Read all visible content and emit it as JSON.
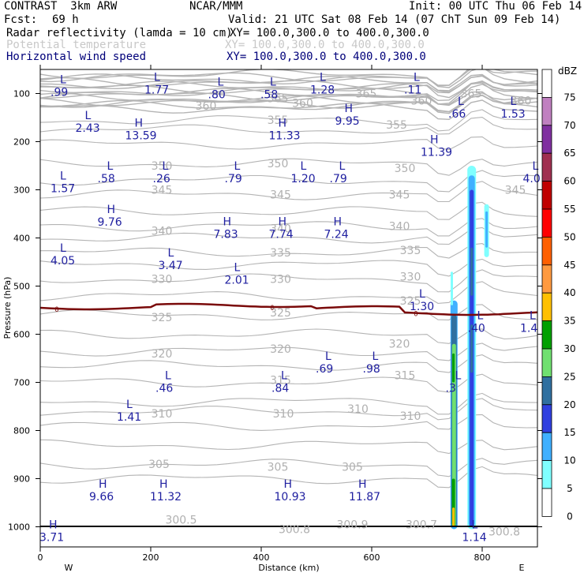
{
  "header": {
    "model": "CONTRAST  3km ARW",
    "org": "NCAR/MMM",
    "init": "Init: 00 UTC Thu 06 Feb 14",
    "fcst_label": "Fcst:",
    "fcst_value": "69 h",
    "valid": "Valid: 21 UTC Sat 08 Feb 14 (07 ChT Sun 09 Feb 14)",
    "fields": [
      {
        "name": "Radar reflectivity (lamda = 10 cm)",
        "xy": "XY= 100.0,300.0 to 400.0,300.0",
        "color": "#000000"
      },
      {
        "name": "Potential temperature",
        "xy": "XY= 100.0,300.0 to 400.0,300.0",
        "color": "#c8c8c8"
      },
      {
        "name": "Horizontal wind speed",
        "xy": "XY= 100.0,300.0 to 400.0,300.0",
        "color": "#00007a"
      }
    ]
  },
  "chart_data": {
    "type": "cross-section",
    "xlabel": "Distance (km)",
    "ylabel": "Pressure (hPa)",
    "xlim": [
      0,
      900
    ],
    "ylim": [
      1050,
      40
    ],
    "x_ticks": [
      "0",
      "200",
      "400",
      "600",
      "800"
    ],
    "y_ticks": [
      "100",
      "200",
      "300",
      "400",
      "500",
      "600",
      "700",
      "800",
      "900",
      "1000"
    ],
    "x_ends": {
      "left": "W",
      "right": "E"
    },
    "colorbar": {
      "unit": "dBZ",
      "levels": [
        "75",
        "70",
        "65",
        "60",
        "55",
        "50",
        "45",
        "40",
        "35",
        "30",
        "25",
        "20",
        "15",
        "10",
        "5",
        "0"
      ],
      "colors": [
        "#ffffff",
        "#c080c0",
        "#8030a0",
        "#a03050",
        "#c00000",
        "#ff0000",
        "#ff6000",
        "#ff9a40",
        "#ffc000",
        "#00a000",
        "#70e070",
        "#3070a0",
        "#3040e0",
        "#40b0ff",
        "#80ffff",
        "#ffffff"
      ]
    },
    "theta_labels": [
      {
        "x": 300,
        "p": 125,
        "t": "360"
      },
      {
        "x": 475,
        "p": 120,
        "t": "360"
      },
      {
        "x": 690,
        "p": 115,
        "t": "360"
      },
      {
        "x": 870,
        "p": 115,
        "t": "360"
      },
      {
        "x": 430,
        "p": 110,
        "t": "365"
      },
      {
        "x": 590,
        "p": 100,
        "t": "365"
      },
      {
        "x": 780,
        "p": 100,
        "t": "365"
      },
      {
        "x": 430,
        "p": 155,
        "t": "355"
      },
      {
        "x": 645,
        "p": 165,
        "t": "355"
      },
      {
        "x": 220,
        "p": 250,
        "t": "350"
      },
      {
        "x": 430,
        "p": 245,
        "t": "350"
      },
      {
        "x": 660,
        "p": 255,
        "t": "350"
      },
      {
        "x": 220,
        "p": 300,
        "t": "345"
      },
      {
        "x": 435,
        "p": 310,
        "t": "345"
      },
      {
        "x": 650,
        "p": 310,
        "t": "345"
      },
      {
        "x": 860,
        "p": 300,
        "t": "345"
      },
      {
        "x": 220,
        "p": 385,
        "t": "340"
      },
      {
        "x": 435,
        "p": 380,
        "t": "340"
      },
      {
        "x": 650,
        "p": 375,
        "t": "340"
      },
      {
        "x": 435,
        "p": 430,
        "t": "335"
      },
      {
        "x": 670,
        "p": 425,
        "t": "335"
      },
      {
        "x": 220,
        "p": 485,
        "t": "330"
      },
      {
        "x": 435,
        "p": 485,
        "t": "330"
      },
      {
        "x": 670,
        "p": 480,
        "t": "330"
      },
      {
        "x": 670,
        "p": 530,
        "t": "325"
      },
      {
        "x": 220,
        "p": 565,
        "t": "325"
      },
      {
        "x": 435,
        "p": 555,
        "t": "325"
      },
      {
        "x": 220,
        "p": 640,
        "t": "320"
      },
      {
        "x": 435,
        "p": 630,
        "t": "320"
      },
      {
        "x": 650,
        "p": 620,
        "t": "320"
      },
      {
        "x": 435,
        "p": 695,
        "t": "315"
      },
      {
        "x": 660,
        "p": 685,
        "t": "315"
      },
      {
        "x": 220,
        "p": 765,
        "t": "310"
      },
      {
        "x": 440,
        "p": 765,
        "t": "310"
      },
      {
        "x": 575,
        "p": 755,
        "t": "310"
      },
      {
        "x": 670,
        "p": 770,
        "t": "310"
      },
      {
        "x": 215,
        "p": 870,
        "t": "305"
      },
      {
        "x": 430,
        "p": 875,
        "t": "305"
      },
      {
        "x": 565,
        "p": 875,
        "t": "305"
      },
      {
        "x": 255,
        "p": 985,
        "t": "300.5"
      },
      {
        "x": 460,
        "p": 1005,
        "t": "300.8"
      },
      {
        "x": 565,
        "p": 995,
        "t": "300.9"
      },
      {
        "x": 690,
        "p": 995,
        "t": "300.7"
      },
      {
        "x": 840,
        "p": 1010,
        "t": "300.8"
      }
    ],
    "wind_labels": [
      {
        "x": 30,
        "p": 85,
        "k": "L",
        "v": ".99"
      },
      {
        "x": 200,
        "p": 80,
        "k": "L",
        "v": "1.77"
      },
      {
        "x": 315,
        "p": 90,
        "k": "L",
        "v": ".80"
      },
      {
        "x": 410,
        "p": 90,
        "k": "L",
        "v": ".58"
      },
      {
        "x": 500,
        "p": 80,
        "k": "L",
        "v": "1.28"
      },
      {
        "x": 670,
        "p": 80,
        "k": "L",
        "v": ".11"
      },
      {
        "x": 75,
        "p": 160,
        "k": "L",
        "v": "2.43"
      },
      {
        "x": 165,
        "p": 175,
        "k": "H",
        "v": "13.59"
      },
      {
        "x": 425,
        "p": 175,
        "k": "H",
        "v": "11.33"
      },
      {
        "x": 545,
        "p": 145,
        "k": "H",
        "v": "9.95"
      },
      {
        "x": 750,
        "p": 130,
        "k": "L",
        "v": ".66"
      },
      {
        "x": 845,
        "p": 130,
        "k": "L",
        "v": "1.53"
      },
      {
        "x": 700,
        "p": 210,
        "k": "H",
        "v": "11.39"
      },
      {
        "x": 30,
        "p": 285,
        "k": "L",
        "v": "1.57"
      },
      {
        "x": 115,
        "p": 265,
        "k": "L",
        "v": ".58"
      },
      {
        "x": 215,
        "p": 265,
        "k": "L",
        "v": ".26"
      },
      {
        "x": 345,
        "p": 265,
        "k": "L",
        "v": ".79"
      },
      {
        "x": 465,
        "p": 265,
        "k": "L",
        "v": "1.20"
      },
      {
        "x": 535,
        "p": 265,
        "k": "L",
        "v": ".79"
      },
      {
        "x": 885,
        "p": 265,
        "k": "L",
        "v": "4.0"
      },
      {
        "x": 115,
        "p": 355,
        "k": "H",
        "v": "9.76"
      },
      {
        "x": 325,
        "p": 380,
        "k": "H",
        "v": "7.83"
      },
      {
        "x": 425,
        "p": 380,
        "k": "H",
        "v": "7.74"
      },
      {
        "x": 525,
        "p": 380,
        "k": "H",
        "v": "7.24"
      },
      {
        "x": 30,
        "p": 435,
        "k": "L",
        "v": "4.05"
      },
      {
        "x": 225,
        "p": 445,
        "k": "L",
        "v": "3.47"
      },
      {
        "x": 345,
        "p": 475,
        "k": "L",
        "v": "2.01"
      },
      {
        "x": 680,
        "p": 530,
        "k": "L",
        "v": "1.30"
      },
      {
        "x": 785,
        "p": 575,
        "k": "L",
        "v": ".40"
      },
      {
        "x": 880,
        "p": 575,
        "k": "L",
        "v": "1.4"
      },
      {
        "x": 510,
        "p": 660,
        "k": "L",
        "v": ".69"
      },
      {
        "x": 595,
        "p": 660,
        "k": "L",
        "v": ".98"
      },
      {
        "x": 220,
        "p": 700,
        "k": "L",
        "v": ".46"
      },
      {
        "x": 430,
        "p": 700,
        "k": "L",
        "v": ".84"
      },
      {
        "x": 745,
        "p": 700,
        "k": "L",
        "v": ".3"
      },
      {
        "x": 150,
        "p": 760,
        "k": "L",
        "v": "1.41"
      },
      {
        "x": 100,
        "p": 925,
        "k": "H",
        "v": "9.66"
      },
      {
        "x": 210,
        "p": 925,
        "k": "H",
        "v": "11.32"
      },
      {
        "x": 435,
        "p": 925,
        "k": "H",
        "v": "10.93"
      },
      {
        "x": 570,
        "p": 925,
        "k": "H",
        "v": "11.87"
      },
      {
        "x": 10,
        "p": 1010,
        "k": "H",
        "v": "3.71"
      },
      {
        "x": 775,
        "p": 1010,
        "k": "L",
        "v": "1.14"
      }
    ],
    "zero_line": {
      "level": 0,
      "label": "0"
    }
  }
}
